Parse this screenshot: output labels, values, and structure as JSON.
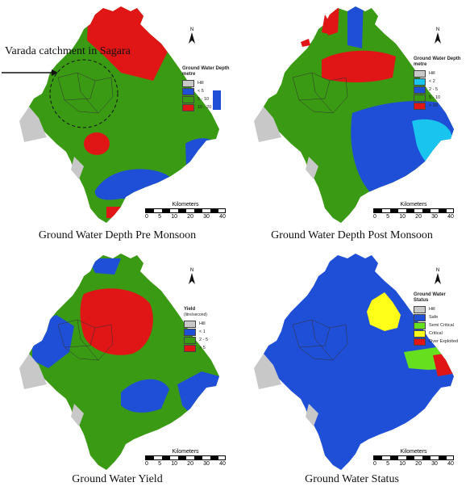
{
  "annotation": "Varada catchment in Sagara",
  "scale": {
    "title": "Kilometers",
    "ticks": [
      "0",
      "5",
      "10",
      "20",
      "30",
      "40"
    ]
  },
  "north_label": "N",
  "colors": {
    "hill": "#c8c8c8",
    "green": "#3a9a14",
    "blue": "#1f4fd6",
    "red": "#e01616",
    "cyan": "#19c4ee",
    "lime": "#66e01e",
    "yellow": "#ffff19"
  },
  "panels": [
    {
      "caption": "Ground Water Depth Pre Monsoon",
      "legend_title": [
        "Ground Water Depth",
        "metre"
      ],
      "legend": [
        {
          "label": "Hill",
          "color": "#c8c8c8"
        },
        {
          "label": "< 5",
          "color": "#1f4fd6"
        },
        {
          "label": "5 - 10",
          "color": "#3a9a14"
        },
        {
          "label": "10 - 20",
          "color": "#e01616"
        }
      ]
    },
    {
      "caption": "Ground Water Depth Post Monsoon",
      "legend_title": [
        "Ground Water Depth",
        "metre"
      ],
      "legend": [
        {
          "label": "Hill",
          "color": "#c8c8c8"
        },
        {
          "label": "< 2",
          "color": "#19c4ee"
        },
        {
          "label": "2 - 5",
          "color": "#1f4fd6"
        },
        {
          "label": "5 - 10",
          "color": "#3a9a14"
        },
        {
          "label": "> 10",
          "color": "#e01616"
        }
      ]
    },
    {
      "caption": "Ground Water Yield",
      "legend_title": [
        "Yield",
        "(litre/second)"
      ],
      "legend": [
        {
          "label": "Hill",
          "color": "#c8c8c8"
        },
        {
          "label": "< 1",
          "color": "#1f4fd6"
        },
        {
          "label": "2 - 5",
          "color": "#3a9a14"
        },
        {
          "label": "> 5",
          "color": "#e01616"
        }
      ]
    },
    {
      "caption": "Ground Water Status",
      "legend_title": [
        "Ground Water",
        "Status"
      ],
      "legend": [
        {
          "label": "Hill",
          "color": "#c8c8c8"
        },
        {
          "label": "Safe",
          "color": "#1f4fd6"
        },
        {
          "label": "Semi Critical",
          "color": "#66e01e"
        },
        {
          "label": "Critical",
          "color": "#ffff19"
        },
        {
          "label": "Over Exploited",
          "color": "#e01616"
        }
      ]
    }
  ]
}
